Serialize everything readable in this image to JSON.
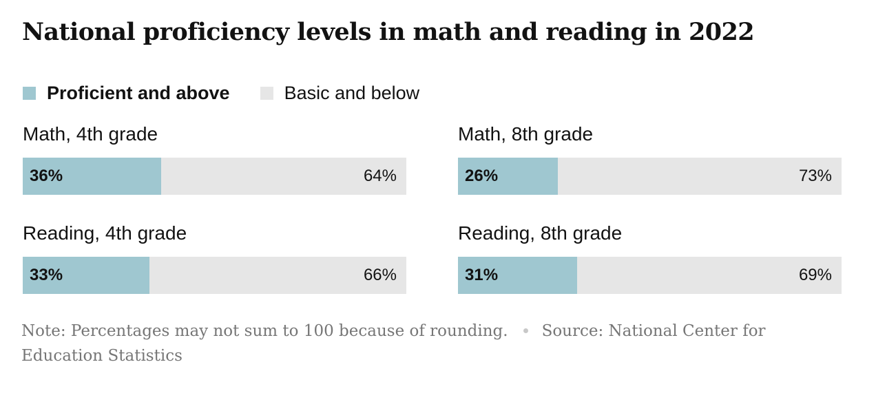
{
  "chart_data": {
    "type": "bar",
    "orientation": "horizontal-stacked",
    "title": "National proficiency levels in math and reading in 2022",
    "legend": [
      {
        "label": "Proficient and above",
        "color": "#9fc7d0"
      },
      {
        "label": "Basic and below",
        "color": "#e6e6e6"
      }
    ],
    "panels": [
      {
        "title": "Math, 4th grade",
        "proficient": 36,
        "basic": 64,
        "proficient_label": "36%",
        "basic_label": "64%"
      },
      {
        "title": "Math, 8th grade",
        "proficient": 26,
        "basic": 73,
        "proficient_label": "26%",
        "basic_label": "73%"
      },
      {
        "title": "Reading, 4th grade",
        "proficient": 33,
        "basic": 66,
        "proficient_label": "33%",
        "basic_label": "66%"
      },
      {
        "title": "Reading, 8th grade",
        "proficient": 31,
        "basic": 69,
        "proficient_label": "31%",
        "basic_label": "69%"
      }
    ],
    "xlim": [
      0,
      100
    ],
    "note": "Note: Percentages may not sum to 100 because of rounding.",
    "source": "Source: National Center for Education Statistics"
  }
}
